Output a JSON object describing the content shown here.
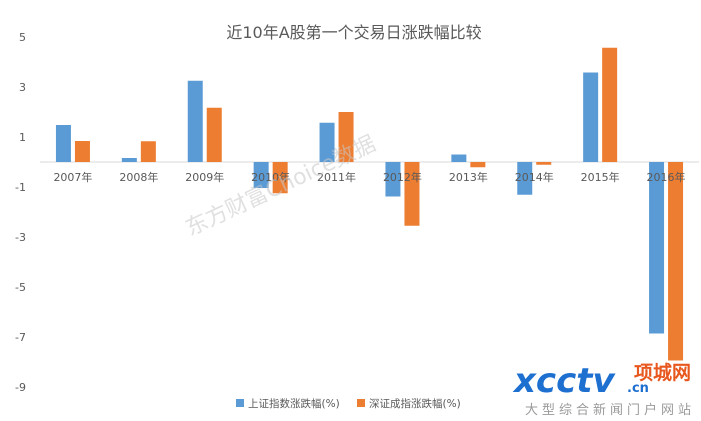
{
  "chart_data": {
    "type": "bar",
    "title": "近10年A股第一个交易日涨跌幅比较",
    "categories": [
      "2007年",
      "2008年",
      "2009年",
      "2010年",
      "2011年",
      "2012年",
      "2013年",
      "2014年",
      "2015年",
      "2016年"
    ],
    "series": [
      {
        "name": "上证指数涨跌幅(%)",
        "color": "#5b9bd5",
        "values": [
          1.48,
          0.16,
          3.25,
          -1.04,
          1.57,
          -1.38,
          0.3,
          -1.31,
          3.58,
          -6.86
        ]
      },
      {
        "name": "深证成指涨跌幅(%)",
        "color": "#ed7d31",
        "values": [
          0.84,
          0.83,
          2.17,
          -1.25,
          2.0,
          -2.55,
          -0.21,
          -0.11,
          4.57,
          -7.94
        ]
      }
    ],
    "ylim": [
      -9,
      5
    ],
    "yticks": [
      5,
      3,
      1,
      -1,
      -3,
      -5,
      -7,
      -9
    ],
    "grid": false,
    "legend_position": "bottom-center"
  },
  "watermark": "东方财富Choice数据",
  "logo": {
    "main": "xcctv",
    "domain": ".cn",
    "brand": "项城网",
    "tagline": "大型综合新闻门户网站"
  }
}
